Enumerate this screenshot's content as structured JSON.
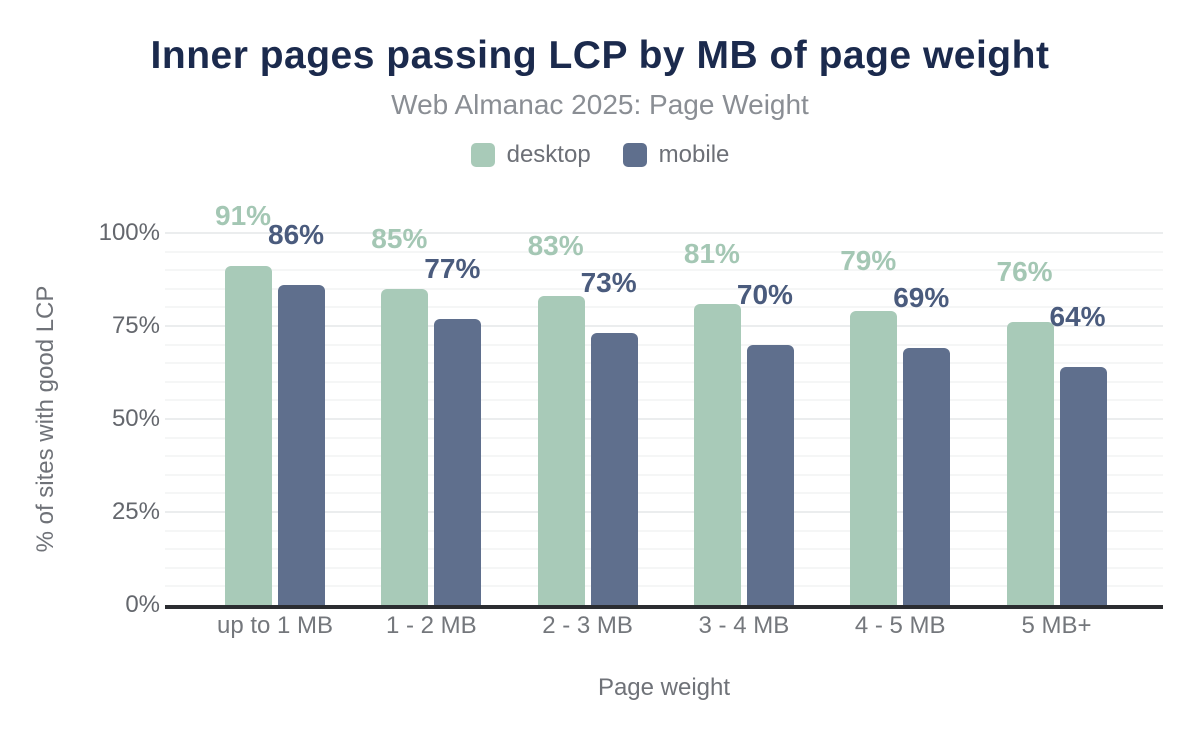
{
  "chart_data": {
    "type": "bar",
    "title": "Inner pages passing LCP by MB of page weight",
    "subtitle": "Web Almanac 2025: Page Weight",
    "xlabel": "Page weight",
    "ylabel": "% of sites with good LCP",
    "categories": [
      "up to 1 MB",
      "1 - 2 MB",
      "2 - 3 MB",
      "3 - 4 MB",
      "4 - 5 MB",
      "5 MB+"
    ],
    "series": [
      {
        "name": "desktop",
        "values": [
          91,
          85,
          83,
          81,
          79,
          76
        ],
        "color": "#a8cab8",
        "label_color": "#a4c7b4"
      },
      {
        "name": "mobile",
        "values": [
          86,
          77,
          73,
          70,
          69,
          64
        ],
        "color": "#5f6f8d",
        "label_color": "#4a5b7d"
      }
    ],
    "value_suffix": "%",
    "ylim": [
      0,
      100
    ],
    "yticks": [
      0,
      25,
      50,
      75,
      100
    ],
    "ytick_labels": [
      "0%",
      "25%",
      "50%",
      "75%",
      "100%"
    ],
    "grid": "horizontal, minor every 5%, major every 25%",
    "legend_position": "top-center",
    "colors": {
      "title": "#1b2a4d",
      "subtitle": "#8a8e94",
      "axis_line": "#2b2d31",
      "grid_minor": "#f5f6f6",
      "grid_major": "#ebedee",
      "tick_text": "#64676d"
    }
  }
}
